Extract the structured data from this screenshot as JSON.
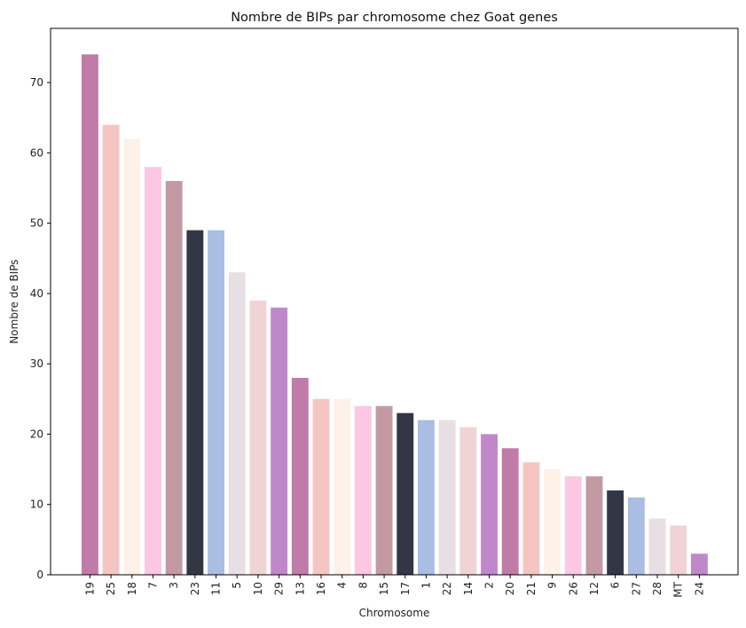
{
  "chart_data": {
    "type": "bar",
    "title": "Nombre de BIPs par chromosome chez Goat genes",
    "xlabel": "Chromosome",
    "ylabel": "Nombre de BIPs",
    "ylim": [
      0,
      77.7
    ],
    "yticks": [
      0,
      10,
      20,
      30,
      40,
      50,
      60,
      70
    ],
    "grid": false,
    "categories": [
      "19",
      "25",
      "18",
      "7",
      "3",
      "23",
      "11",
      "5",
      "10",
      "29",
      "13",
      "16",
      "4",
      "8",
      "15",
      "17",
      "1",
      "22",
      "14",
      "2",
      "20",
      "21",
      "9",
      "26",
      "12",
      "6",
      "27",
      "28",
      "MT",
      "24"
    ],
    "values": [
      74,
      64,
      62,
      58,
      56,
      49,
      49,
      43,
      39,
      38,
      28,
      25,
      25,
      24,
      24,
      23,
      22,
      22,
      21,
      20,
      18,
      16,
      15,
      14,
      14,
      12,
      11,
      8,
      7,
      3
    ],
    "colors": [
      "#c17ba8",
      "#f5c6c1",
      "#fdf1e8",
      "#fdc6e3",
      "#c39aa4",
      "#333644",
      "#aabde2",
      "#e8dfe4",
      "#f0d4d5",
      "#c088cb"
    ]
  }
}
